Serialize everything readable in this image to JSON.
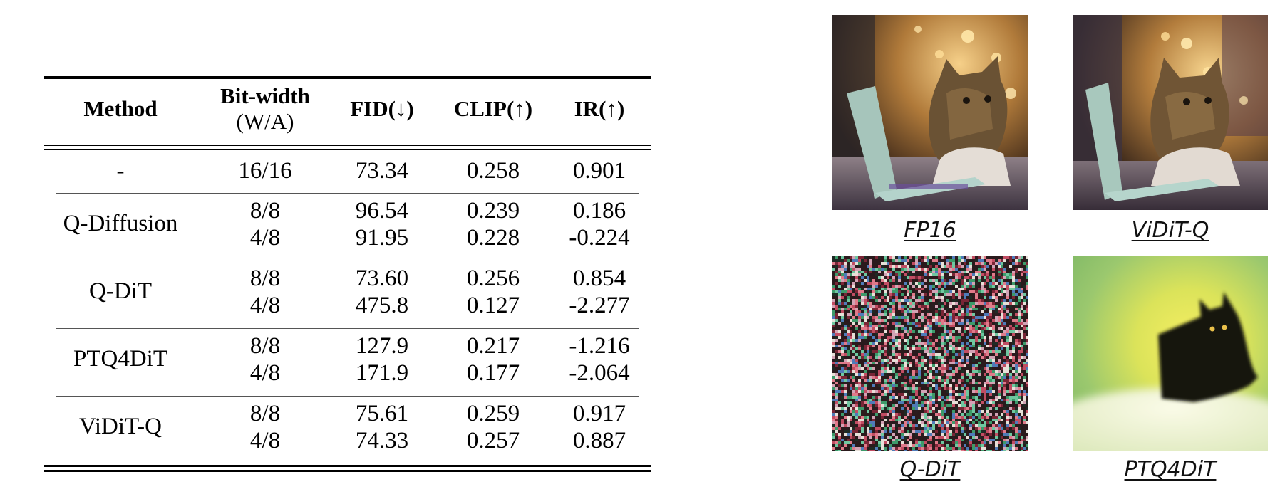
{
  "table": {
    "headers": [
      {
        "line1": "Method",
        "line2": ""
      },
      {
        "line1": "Bit-width",
        "line2": "(W/A)"
      },
      {
        "line1": "FID(↓)",
        "line2": ""
      },
      {
        "line1": "CLIP(↑)",
        "line2": ""
      },
      {
        "line1": "IR(↑)",
        "line2": ""
      }
    ],
    "groups": [
      {
        "method": "-",
        "rows": [
          {
            "bits": "16/16",
            "fid": "73.34",
            "clip": "0.258",
            "ir": "0.901"
          }
        ]
      },
      {
        "method": "Q-Diffusion",
        "rows": [
          {
            "bits": "8/8",
            "fid": "96.54",
            "clip": "0.239",
            "ir": "0.186"
          },
          {
            "bits": "4/8",
            "fid": "91.95",
            "clip": "0.228",
            "ir": "-0.224"
          }
        ]
      },
      {
        "method": "Q-DiT",
        "rows": [
          {
            "bits": "8/8",
            "fid": "73.60",
            "clip": "0.256",
            "ir": "0.854"
          },
          {
            "bits": "4/8",
            "fid": "475.8",
            "clip": "0.127",
            "ir": "-2.277"
          }
        ]
      },
      {
        "method": "PTQ4DiT",
        "rows": [
          {
            "bits": "8/8",
            "fid": "127.9",
            "clip": "0.217",
            "ir": "-1.216"
          },
          {
            "bits": "4/8",
            "fid": "171.9",
            "clip": "0.177",
            "ir": "-2.064"
          }
        ]
      },
      {
        "method": "ViDiT-Q",
        "rows": [
          {
            "bits": "8/8",
            "fid": "75.61",
            "clip": "0.259",
            "ir": "0.917"
          },
          {
            "bits": "4/8",
            "fid": "74.33",
            "clip": "0.257",
            "ir": "0.887"
          }
        ]
      }
    ]
  },
  "images": [
    {
      "caption": "FP16",
      "kind": "cat-photo"
    },
    {
      "caption": "ViDiT-Q",
      "kind": "cat-photo-variant"
    },
    {
      "caption": "Q-DiT",
      "kind": "noise"
    },
    {
      "caption": "PTQ4DiT",
      "kind": "blurry-silhouette"
    }
  ]
}
